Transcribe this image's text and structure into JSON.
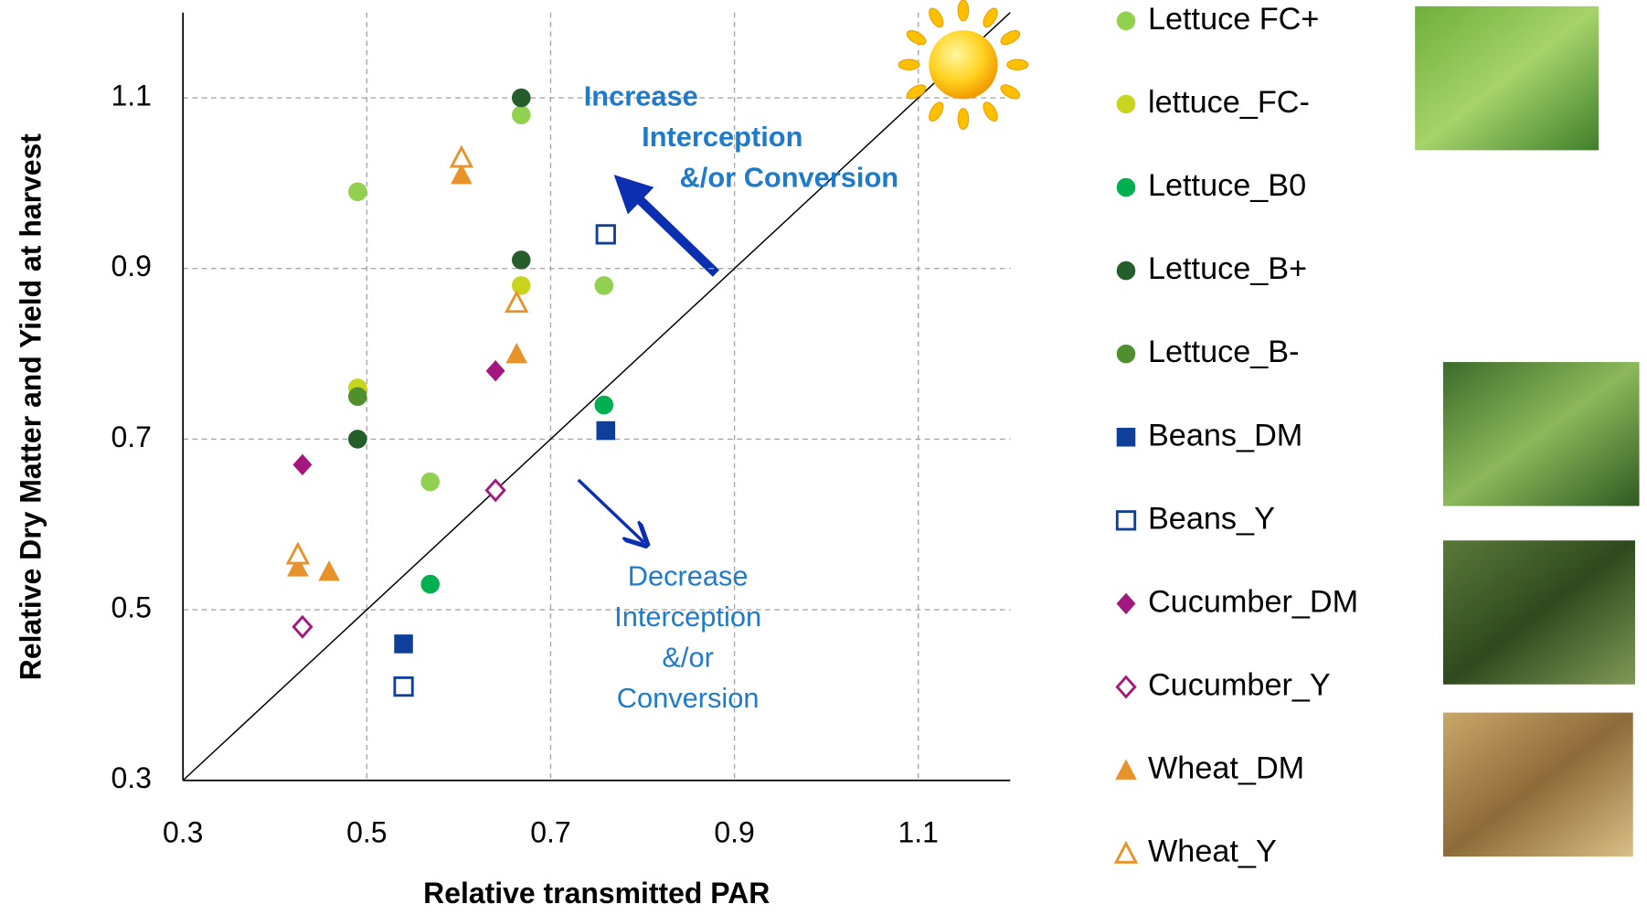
{
  "chart_data": {
    "type": "scatter",
    "x_label": "Relative transmitted PAR",
    "y_label": "Relative Dry Matter and Yield at harvest",
    "xlim": [
      0.3,
      1.2
    ],
    "ylim": [
      0.3,
      1.2
    ],
    "xticks": [
      0.3,
      0.5,
      0.7,
      0.9,
      1.1
    ],
    "yticks": [
      0.3,
      0.5,
      0.7,
      0.9,
      1.1
    ],
    "grid": true,
    "identity_line": true,
    "legend": "right",
    "series": [
      {
        "name": "Lettuce FC+",
        "color": "#92d050",
        "marker": "circle",
        "filled": true,
        "x": [
          0.49,
          0.668,
          0.758,
          0.569
        ],
        "values": [
          0.99,
          1.08,
          0.88,
          0.65
        ]
      },
      {
        "name": "lettuce_FC-",
        "color": "#c8d41e",
        "marker": "circle",
        "filled": true,
        "x": [
          0.49,
          0.668
        ],
        "values": [
          0.76,
          0.88
        ]
      },
      {
        "name": "Lettuce_B0",
        "color": "#00b050",
        "marker": "circle",
        "filled": true,
        "x": [
          0.758,
          0.569
        ],
        "values": [
          0.74,
          0.53
        ]
      },
      {
        "name": "Lettuce_B+",
        "color": "#255e2a",
        "marker": "circle",
        "filled": true,
        "x": [
          0.668,
          0.668,
          0.49
        ],
        "values": [
          1.1,
          0.91,
          0.7
        ]
      },
      {
        "name": "Lettuce_B-",
        "color": "#4f8f2e",
        "marker": "circle",
        "filled": true,
        "x": [
          0.49
        ],
        "values": [
          0.75
        ]
      },
      {
        "name": "Beans_DM",
        "color": "#0e3f9b",
        "marker": "square",
        "filled": true,
        "x": [
          0.76,
          0.54
        ],
        "values": [
          0.71,
          0.46
        ]
      },
      {
        "name": "Beans_Y",
        "color": "#0e3f9b",
        "marker": "square",
        "filled": false,
        "x": [
          0.76,
          0.54
        ],
        "values": [
          0.94,
          0.41
        ]
      },
      {
        "name": "Cucumber_DM",
        "color": "#a3187f",
        "marker": "diamond",
        "filled": true,
        "x": [
          0.64,
          0.43
        ],
        "values": [
          0.78,
          0.67
        ]
      },
      {
        "name": "Cucumber_Y",
        "color": "#a3187f",
        "marker": "diamond",
        "filled": false,
        "x": [
          0.64,
          0.43
        ],
        "values": [
          0.64,
          0.48
        ]
      },
      {
        "name": "Wheat_DM",
        "color": "#e8922a",
        "marker": "triangle",
        "filled": true,
        "x": [
          0.603,
          0.663,
          0.425,
          0.459
        ],
        "values": [
          1.01,
          0.8,
          0.55,
          0.545
        ]
      },
      {
        "name": "Wheat_Y",
        "color": "#e8922a",
        "marker": "triangle",
        "filled": false,
        "x": [
          0.603,
          0.663,
          0.425
        ],
        "values": [
          1.03,
          0.86,
          0.565
        ]
      }
    ],
    "annotations": [
      {
        "lines": [
          "Increase",
          "Interception",
          "&/or Conversion"
        ],
        "color": "#1f7ac9",
        "bold": true
      },
      {
        "lines": [
          "Decrease",
          "Interception",
          "&/or",
          "Conversion"
        ],
        "color": "#1f7ac9",
        "bold": false
      }
    ]
  }
}
